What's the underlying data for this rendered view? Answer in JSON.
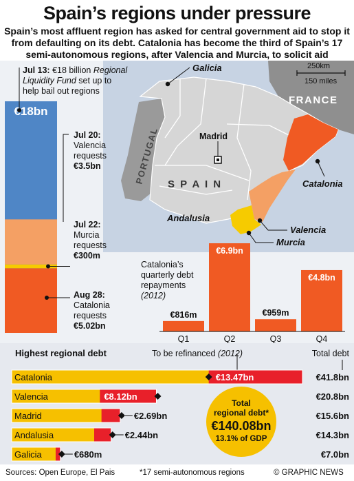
{
  "title": "Spain’s regions under pressure",
  "subtitle": "Spain’s most affluent region has asked for central government aid to stop it from defaulting on its debt. Catalonia has become the third of Spain’s 17 semi-autonomous regions, after Valencia and Murcia, to solicit aid",
  "colors": {
    "fund_blue": "#4f86c6",
    "valencia_orange": "#f4a064",
    "catalonia_red_orange": "#f05a23",
    "murcia_yellow": "#f6cb00",
    "gold_bar": "#f6c000",
    "refinance_red": "#e8202a",
    "land_grey": "#d6d6d6",
    "sea_blue": "#c7d3e3"
  },
  "map": {
    "labels": {
      "galicia": "Galicia",
      "madrid": "Madrid",
      "spain": "S P A I N",
      "portugal": "PORTUGAL",
      "france": "FRANCE",
      "andalusia": "Andalusia",
      "catalonia": "Catalonia",
      "valencia": "Valencia",
      "murcia": "Murcia"
    },
    "scale": {
      "km": "250km",
      "miles": "150 miles"
    }
  },
  "timeline": {
    "fund": {
      "date": "Jul 13:",
      "amount_text": "€18 billion",
      "name": "Regional Liquidity Fund",
      "rest": "set up to help bail out regions",
      "bar_label": "€18bn",
      "value_bn": 18
    },
    "requests": [
      {
        "date": "Jul 20:",
        "region": "Valencia",
        "verb": "requests",
        "amount": "€3.5bn",
        "value_bn": 3.5
      },
      {
        "date": "Jul 22:",
        "region": "Murcia",
        "verb": "requests",
        "amount": "€300m",
        "value_bn": 0.3
      },
      {
        "date": "Aug 28:",
        "region": "Catalonia",
        "verb": "requests",
        "amount": "€5.02bn",
        "value_bn": 5.02
      }
    ]
  },
  "quarterly_note": {
    "line1": "Catalonia’s",
    "line2": "quarterly debt",
    "line3": "repayments",
    "line4": "(2012)"
  },
  "debt_chart_header": {
    "title": "Highest regional debt",
    "refinance": "To be refinanced",
    "refinance_year": "(2012)",
    "total": "Total debt"
  },
  "total_badge": {
    "line1": "Total",
    "line2": "regional debt*",
    "line3": "€140.08bn",
    "line4": "13.1% of GDP"
  },
  "footer": {
    "sources": "Sources: Open Europe, El Pais",
    "footnote": "*17 semi-autonomous regions",
    "credit": "© GRAPHIC NEWS"
  },
  "chart_data": [
    {
      "type": "bar",
      "title": "Catalonia’s quarterly debt repayments (2012)",
      "categories": [
        "Q1",
        "Q2",
        "Q3",
        "Q4"
      ],
      "values": [
        0.816,
        6.9,
        0.959,
        4.8
      ],
      "value_labels": [
        "€816m",
        "€6.9bn",
        "€959m",
        "€4.8bn"
      ],
      "unit": "€bn"
    },
    {
      "type": "bar",
      "title": "Highest regional debt",
      "categories": [
        "Catalonia",
        "Valencia",
        "Madrid",
        "Andalusia",
        "Galicia"
      ],
      "series": [
        {
          "name": "To be refinanced (2012)",
          "values": [
            13.47,
            8.12,
            2.69,
            2.44,
            0.68
          ],
          "labels": [
            "€13.47bn",
            "€8.12bn",
            "€2.69bn",
            "€2.44bn",
            "€680m"
          ]
        },
        {
          "name": "Total debt",
          "values": [
            41.8,
            20.8,
            15.6,
            14.3,
            7.0
          ],
          "labels": [
            "€41.8bn",
            "€20.8bn",
            "€15.6bn",
            "€14.3bn",
            "€7.0bn"
          ]
        }
      ],
      "unit": "€bn"
    }
  ]
}
